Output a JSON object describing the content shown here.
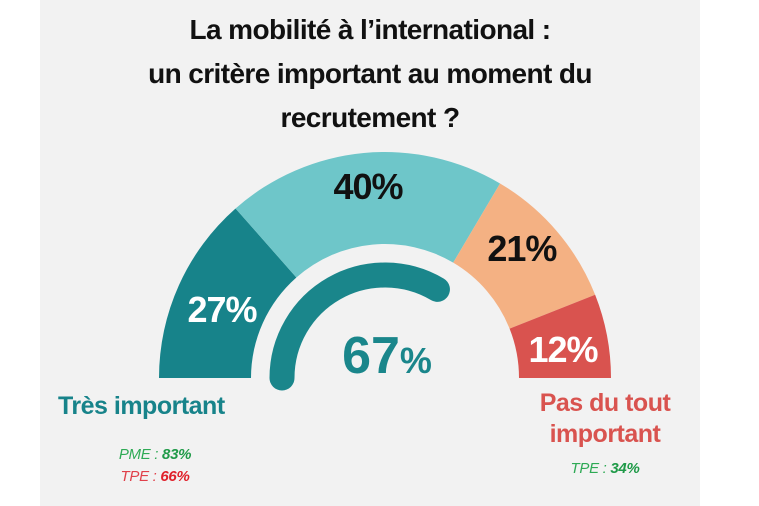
{
  "chart_data": {
    "type": "pie",
    "variant": "semi-donut gauge",
    "title": [
      "La mobilité à l’international :",
      "un critère important au moment du",
      "recrutement ?"
    ],
    "categories": [
      "Très important",
      "",
      "",
      "Pas du tout important"
    ],
    "values": [
      27,
      40,
      21,
      12
    ],
    "data_labels": [
      "27%",
      "40%",
      "21%",
      "12%"
    ],
    "colors": [
      "#17838a",
      "#6ec6c9",
      "#f4b183",
      "#d9534f"
    ],
    "label_colors": [
      "#ffffff",
      "#111111",
      "#111111",
      "#ffffff"
    ],
    "gauge": {
      "value": 67,
      "label": "67",
      "unit": "%",
      "color": "#1a868b"
    },
    "left_label": {
      "text": "Très important",
      "color": "#17838a"
    },
    "right_label": {
      "text": [
        "Pas du tout",
        "important"
      ],
      "color": "#d9534f"
    },
    "annotations": {
      "left": [
        {
          "prefix": "PME : ",
          "value": "83%",
          "color": "#2eaa55",
          "value_color": "#1f9a48"
        },
        {
          "prefix": "TPE : ",
          "value": "66%",
          "color": "#e0404a",
          "value_color": "#e0202a"
        }
      ],
      "right": [
        {
          "prefix": "TPE : ",
          "value": "34%",
          "color": "#2eaa55",
          "value_color": "#1f9a48"
        }
      ]
    }
  }
}
